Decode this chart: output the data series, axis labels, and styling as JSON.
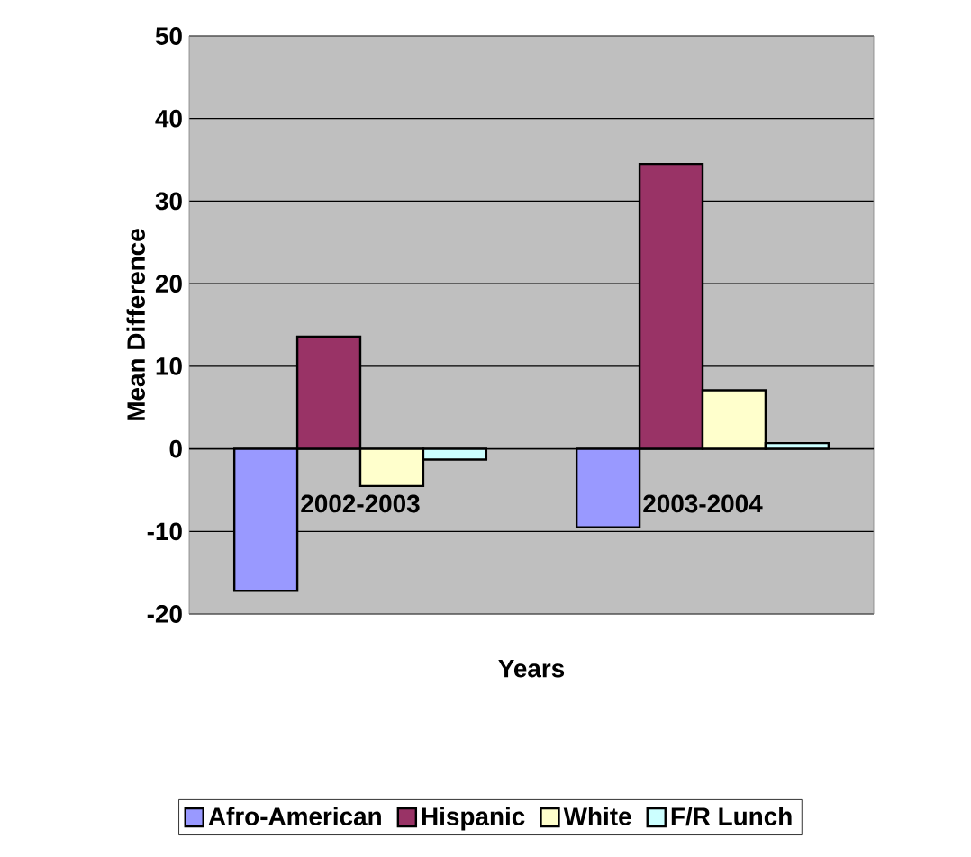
{
  "chart_data": {
    "type": "bar",
    "xlabel": "Years",
    "ylabel": "Mean Difference",
    "categories": [
      "2002-2003",
      "2003-2004"
    ],
    "series": [
      {
        "name": "Afro-American",
        "color": "#9999ff",
        "values": [
          -17.2,
          -9.5
        ]
      },
      {
        "name": "Hispanic",
        "color": "#993366",
        "values": [
          13.6,
          34.5
        ]
      },
      {
        "name": "White",
        "color": "#ffffcc",
        "values": [
          -4.5,
          7.1
        ]
      },
      {
        "name": "F/R Lunch",
        "color": "#ccffff",
        "values": [
          -1.3,
          0.7
        ]
      }
    ],
    "ylim": [
      -20,
      50
    ],
    "yticks": [
      -20,
      -10,
      0,
      10,
      20,
      30,
      40,
      50
    ],
    "grid": "y",
    "legend": "bottom"
  }
}
